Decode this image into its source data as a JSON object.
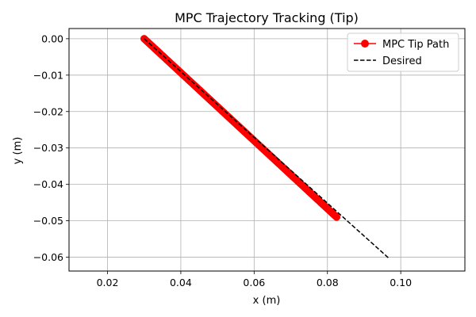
{
  "chart_data": {
    "type": "line",
    "title": "MPC Trajectory Tracking (Tip)",
    "xlabel": "x (m)",
    "ylabel": "y (m)",
    "xlim": [
      0.0095,
      0.1175
    ],
    "ylim": [
      -0.0638,
      0.0028
    ],
    "xticks": [
      0.02,
      0.04,
      0.06,
      0.08,
      0.1
    ],
    "xtick_labels": [
      "0.02",
      "0.04",
      "0.06",
      "0.08",
      "0.10"
    ],
    "yticks": [
      0.0,
      -0.01,
      -0.02,
      -0.03,
      -0.04,
      -0.05,
      -0.06
    ],
    "ytick_labels": [
      "0.00",
      "−0.01",
      "−0.02",
      "−0.03",
      "−0.04",
      "−0.05",
      "−0.06"
    ],
    "grid": true,
    "legend_position": "top-right",
    "series": [
      {
        "name": "MPC Tip Path",
        "style": "line-with-circle-markers",
        "color": "#ff0000",
        "x_start": 0.03,
        "y_start": 0.0,
        "x_end": 0.0825,
        "y_end": -0.049,
        "num_points": 200
      },
      {
        "name": "Desired",
        "style": "dashed",
        "color": "#000000",
        "x": [
          0.03,
          0.097
        ],
        "y": [
          0.0,
          -0.0605
        ]
      }
    ]
  }
}
